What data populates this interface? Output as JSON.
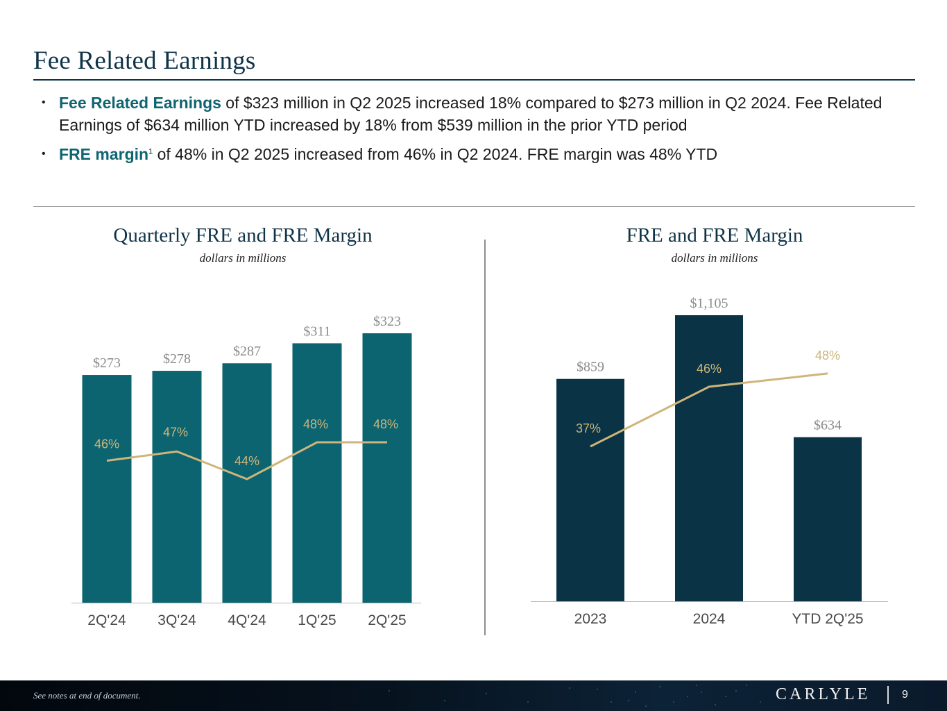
{
  "page": {
    "title": "Fee Related Earnings",
    "bullets": [
      {
        "highlight": "Fee Related Earnings",
        "text": " of $323 million in Q2 2025 increased 18% compared to $273 million in Q2 2024. Fee Related Earnings of $634 million YTD increased by 18% from $539 million in the prior YTD period"
      },
      {
        "highlight": "FRE margin",
        "sup": "1",
        "text": " of 48% in Q2 2025 increased from 46% in Q2 2024. FRE margin was 48% YTD"
      }
    ]
  },
  "footer": {
    "note": "See notes at end of document.",
    "logo": "CARLYLE",
    "page_number": "9"
  },
  "colors": {
    "title": "#0f3347",
    "highlight": "#0e6470",
    "bar_quarterly": "#0b6470",
    "bar_annual": "#0a3346",
    "line": "#cfb57a",
    "bar_label": "#8a8a8a"
  },
  "chart_data": [
    {
      "type": "bar",
      "title": "Quarterly FRE and FRE Margin",
      "subtitle": "dollars in millions",
      "categories": [
        "2Q'24",
        "3Q'24",
        "4Q'24",
        "1Q'25",
        "2Q'25"
      ],
      "series": [
        {
          "name": "FRE",
          "type": "bar",
          "values": [
            273,
            278,
            287,
            311,
            323
          ],
          "labels": [
            "$273",
            "$278",
            "$287",
            "$311",
            "$323"
          ]
        },
        {
          "name": "FRE Margin",
          "type": "line",
          "values": [
            46,
            47,
            44,
            48,
            48
          ],
          "labels": [
            "46%",
            "47%",
            "44%",
            "48%",
            "48%"
          ]
        }
      ],
      "xlabel": "",
      "ylabel": "",
      "ylim": [
        0,
        360
      ]
    },
    {
      "type": "bar",
      "title": "FRE and FRE Margin",
      "subtitle": "dollars in millions",
      "categories": [
        "2023",
        "2024",
        "YTD 2Q'25"
      ],
      "series": [
        {
          "name": "FRE",
          "type": "bar",
          "values": [
            859,
            1105,
            634
          ],
          "labels": [
            "$859",
            "$1,105",
            "$634"
          ]
        },
        {
          "name": "FRE Margin",
          "type": "line",
          "values": [
            37,
            46,
            48
          ],
          "labels": [
            "37%",
            "46%",
            "48%"
          ]
        }
      ],
      "xlabel": "",
      "ylabel": "",
      "ylim": [
        0,
        1150
      ]
    }
  ]
}
